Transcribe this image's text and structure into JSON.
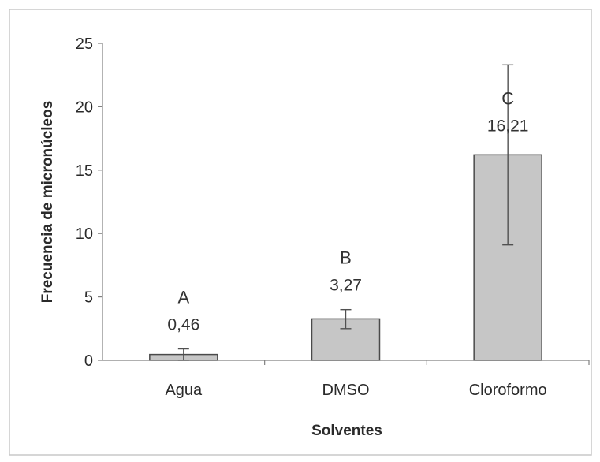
{
  "chart_data": {
    "type": "bar",
    "title": "",
    "xlabel": "Solventes",
    "ylabel": "Frecuencia de micronúcleos",
    "ylim": [
      0,
      25
    ],
    "yticks": [
      0,
      5,
      10,
      15,
      20,
      25
    ],
    "grid": false,
    "categories": [
      "Agua",
      "DMSO",
      "Cloroformo"
    ],
    "values": [
      0.46,
      3.27,
      16.21
    ],
    "value_labels": [
      "0,46",
      "3,27",
      "16,21"
    ],
    "group_letters": [
      "A",
      "B",
      "C"
    ],
    "error_low": [
      0.0,
      2.5,
      9.1
    ],
    "error_high": [
      0.9,
      4.0,
      23.3
    ],
    "colors": {
      "bar_fill": "#c6c6c6",
      "bar_stroke": "#4a4a4a",
      "axis": "#808080"
    }
  }
}
